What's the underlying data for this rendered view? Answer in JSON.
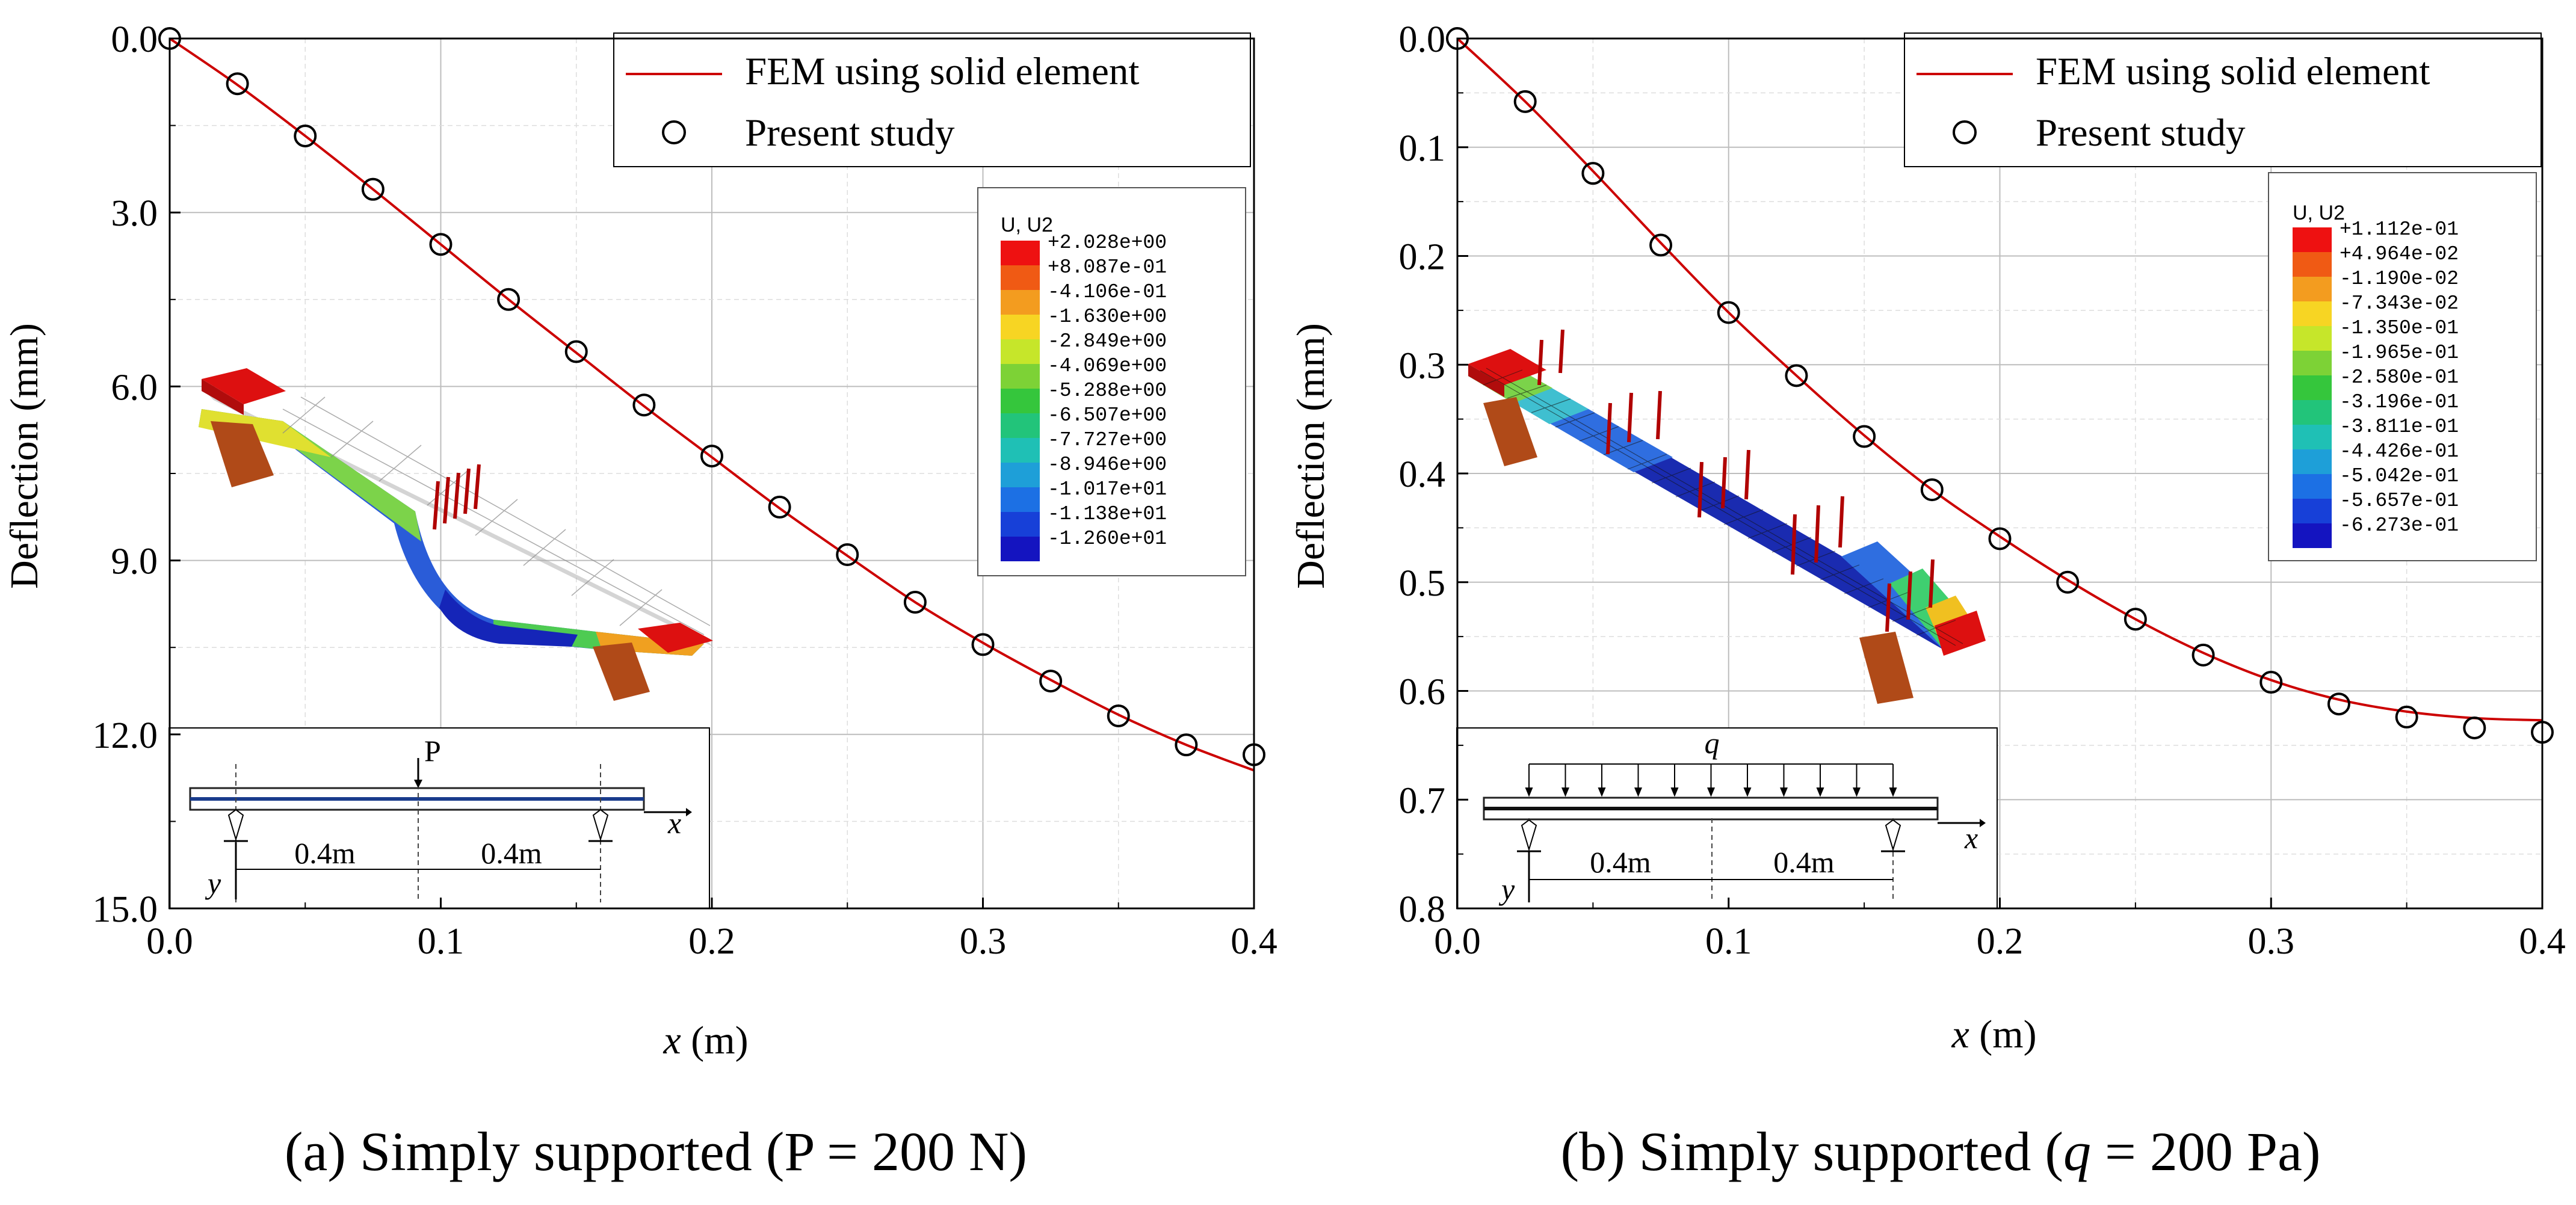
{
  "colors": {
    "fem_line": "#cc0000",
    "marker": "#000000",
    "grid": "#c8c8c8",
    "frame": "#000000"
  },
  "chart_data": [
    {
      "type": "line",
      "caption": "(a) Simply supported (P = 200 N)",
      "xlabel_var": "x",
      "xlabel_unit": " (m)",
      "ylabel": "Deflection (mm)",
      "xlim": [
        0,
        0.4
      ],
      "ylim": [
        0,
        15
      ],
      "y_inverted": true,
      "xticks": [
        0,
        0.1,
        0.2,
        0.3,
        0.4
      ],
      "xtick_labels": [
        "0.0",
        "0.1",
        "0.2",
        "0.3",
        "0.4"
      ],
      "yticks": [
        0,
        3,
        6,
        9,
        12,
        15
      ],
      "ytick_labels": [
        "0.0",
        "3.0",
        "6.0",
        "9.0",
        "12.0",
        "15.0"
      ],
      "grid": true,
      "legend_position": "top-right",
      "series": [
        {
          "name": "FEM using solid element",
          "kind": "line",
          "x": [
            0,
            0.025,
            0.05,
            0.075,
            0.1,
            0.125,
            0.15,
            0.175,
            0.2,
            0.225,
            0.25,
            0.275,
            0.3,
            0.325,
            0.35,
            0.375,
            0.4
          ],
          "values": [
            0,
            0.8,
            1.68,
            2.6,
            3.55,
            4.5,
            5.42,
            6.34,
            7.22,
            8.1,
            8.92,
            9.72,
            10.42,
            11.06,
            11.66,
            12.18,
            12.62
          ]
        },
        {
          "name": "Present study",
          "kind": "scatter",
          "x": [
            0,
            0.025,
            0.05,
            0.075,
            0.1,
            0.125,
            0.15,
            0.175,
            0.2,
            0.225,
            0.25,
            0.275,
            0.3,
            0.325,
            0.35,
            0.375,
            0.4
          ],
          "values": [
            0,
            0.78,
            1.68,
            2.6,
            3.55,
            4.5,
            5.4,
            6.32,
            7.2,
            8.08,
            8.9,
            9.72,
            10.45,
            11.08,
            11.68,
            12.18,
            12.35
          ]
        }
      ],
      "contour_legend": {
        "title": "U, U2",
        "values": [
          "+2.028e+00",
          "+8.087e-01",
          "-4.106e-01",
          "-1.630e+00",
          "-2.849e+00",
          "-4.069e+00",
          "-5.288e+00",
          "-6.507e+00",
          "-7.727e+00",
          "-8.946e+00",
          "-1.017e+01",
          "-1.138e+01",
          "-1.260e+01"
        ]
      },
      "schematic": {
        "load_label": "P",
        "axis_x": "x",
        "axis_y": "y",
        "span_left": "0.4m",
        "span_right": "0.4m"
      }
    },
    {
      "type": "line",
      "caption_prefix": "(b) Simply supported (",
      "caption_var": "q",
      "caption_suffix": " = 200 Pa)",
      "xlabel_var": "x",
      "xlabel_unit": " (m)",
      "ylabel": "Deflection (mm)",
      "xlim": [
        0,
        0.4
      ],
      "ylim": [
        0,
        0.8
      ],
      "y_inverted": true,
      "xticks": [
        0,
        0.1,
        0.2,
        0.3,
        0.4
      ],
      "xtick_labels": [
        "0.0",
        "0.1",
        "0.2",
        "0.3",
        "0.4"
      ],
      "yticks": [
        0,
        0.1,
        0.2,
        0.3,
        0.4,
        0.5,
        0.6,
        0.7,
        0.8
      ],
      "ytick_labels": [
        "0.0",
        "0.1",
        "0.2",
        "0.3",
        "0.4",
        "0.5",
        "0.6",
        "0.7",
        "0.8"
      ],
      "grid": true,
      "legend_position": "top-right",
      "series": [
        {
          "name": "FEM using solid element",
          "kind": "line",
          "x": [
            0,
            0.025,
            0.05,
            0.075,
            0.1,
            0.125,
            0.15,
            0.175,
            0.2,
            0.225,
            0.25,
            0.275,
            0.3,
            0.325,
            0.35,
            0.375,
            0.4
          ],
          "values": [
            0,
            0.058,
            0.122,
            0.188,
            0.252,
            0.31,
            0.365,
            0.415,
            0.458,
            0.498,
            0.534,
            0.565,
            0.59,
            0.608,
            0.619,
            0.625,
            0.627
          ]
        },
        {
          "name": "Present study",
          "kind": "scatter",
          "x": [
            0,
            0.025,
            0.05,
            0.075,
            0.1,
            0.125,
            0.15,
            0.175,
            0.2,
            0.225,
            0.25,
            0.275,
            0.3,
            0.325,
            0.35,
            0.375,
            0.4
          ],
          "values": [
            0,
            0.058,
            0.124,
            0.19,
            0.252,
            0.31,
            0.366,
            0.415,
            0.46,
            0.5,
            0.534,
            0.567,
            0.592,
            0.612,
            0.624,
            0.634,
            0.638
          ]
        }
      ],
      "contour_legend": {
        "title": "U, U2",
        "values": [
          "+1.112e-01",
          "+4.964e-02",
          "-1.190e-02",
          "-7.343e-02",
          "-1.350e-01",
          "-1.965e-01",
          "-2.580e-01",
          "-3.196e-01",
          "-3.811e-01",
          "-4.426e-01",
          "-5.042e-01",
          "-5.657e-01",
          "-6.273e-01"
        ]
      },
      "schematic": {
        "load_label": "q",
        "axis_x": "x",
        "axis_y": "y",
        "span_left": "0.4m",
        "span_right": "0.4m"
      }
    }
  ]
}
